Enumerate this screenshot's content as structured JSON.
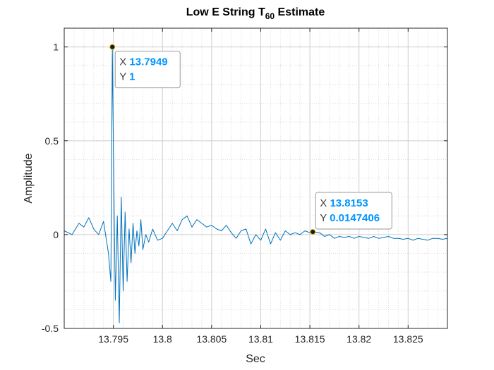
{
  "chart_data": {
    "type": "line",
    "title": "Low E String T",
    "title_subscript": "60",
    "title_suffix": " Estimate",
    "xlabel": "Sec",
    "ylabel": "Amplitude",
    "xlim": [
      13.79,
      13.829
    ],
    "ylim": [
      -0.5,
      1.1
    ],
    "xticks": [
      13.795,
      13.8,
      13.805,
      13.81,
      13.815,
      13.82,
      13.825
    ],
    "xtick_labels": [
      "13.795",
      "13.8",
      "13.805",
      "13.81",
      "13.815",
      "13.82",
      "13.825"
    ],
    "yticks": [
      -0.5,
      0,
      0.5,
      1
    ],
    "ytick_labels": [
      "-0.5",
      "0",
      "0.5",
      "1"
    ],
    "grid": true,
    "minor_grid": true,
    "line_color": "#0072BD",
    "series": [
      {
        "x": [
          13.79,
          13.7908,
          13.7915,
          13.792,
          13.7925,
          13.793,
          13.7935,
          13.794,
          13.7945,
          13.79475,
          13.7949,
          13.795,
          13.7952,
          13.7954,
          13.7956,
          13.7958,
          13.796,
          13.7962,
          13.7964,
          13.7966,
          13.7968,
          13.797,
          13.7972,
          13.7974,
          13.7976,
          13.7978,
          13.798,
          13.7983,
          13.7986,
          13.799,
          13.7995,
          13.8,
          13.8005,
          13.801,
          13.8015,
          13.802,
          13.8025,
          13.803,
          13.8035,
          13.804,
          13.8045,
          13.805,
          13.8055,
          13.806,
          13.8065,
          13.807,
          13.8075,
          13.808,
          13.8085,
          13.809,
          13.8095,
          13.81,
          13.8105,
          13.811,
          13.8115,
          13.812,
          13.8125,
          13.813,
          13.8135,
          13.814,
          13.8145,
          13.815,
          13.8153,
          13.816,
          13.8165,
          13.817,
          13.8175,
          13.818,
          13.8185,
          13.819,
          13.8195,
          13.82,
          13.8205,
          13.821,
          13.8215,
          13.822,
          13.8225,
          13.823,
          13.8235,
          13.824,
          13.8245,
          13.825,
          13.8255,
          13.826,
          13.8265,
          13.827,
          13.8275,
          13.828,
          13.8285,
          13.829
        ],
        "y": [
          0.02,
          0.0,
          0.06,
          0.04,
          0.09,
          0.03,
          0.0,
          0.07,
          -0.1,
          -0.25,
          1.0,
          0.5,
          -0.35,
          0.1,
          -0.47,
          0.2,
          -0.3,
          0.12,
          -0.25,
          0.03,
          -0.15,
          0.06,
          -0.1,
          0.02,
          -0.06,
          0.08,
          -0.08,
          0.0,
          -0.04,
          0.03,
          -0.03,
          -0.02,
          0.02,
          0.06,
          0.02,
          0.08,
          0.1,
          0.04,
          0.08,
          0.06,
          0.04,
          0.05,
          0.03,
          0.02,
          0.05,
          0.01,
          -0.02,
          0.02,
          0.03,
          -0.05,
          0.0,
          -0.03,
          0.03,
          -0.05,
          0.01,
          -0.03,
          0.02,
          0.0,
          0.01,
          0.0,
          0.02,
          0.01,
          0.015,
          0.01,
          -0.01,
          0.0,
          -0.02,
          -0.01,
          -0.015,
          -0.01,
          -0.02,
          -0.01,
          -0.015,
          -0.02,
          -0.01,
          -0.02,
          -0.015,
          -0.01,
          -0.02,
          -0.02,
          -0.025,
          -0.02,
          -0.03,
          -0.02,
          -0.025,
          -0.03,
          -0.02,
          -0.02,
          -0.025,
          -0.02
        ]
      }
    ],
    "datatips": [
      {
        "x": 13.7949,
        "y": 1,
        "x_label": "X",
        "y_label": "Y",
        "x_text": "13.7949",
        "y_text": "1"
      },
      {
        "x": 13.8153,
        "y": 0.0147406,
        "x_label": "X",
        "y_label": "Y",
        "x_text": "13.8153",
        "y_text": "0.0147406"
      }
    ],
    "datatip_value_color": "#0096FF"
  }
}
